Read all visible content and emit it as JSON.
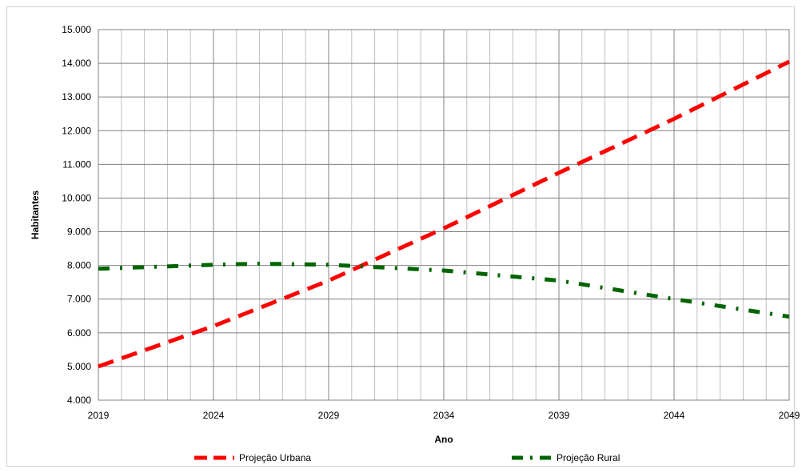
{
  "chart_data": {
    "type": "line",
    "title": "",
    "xlabel": "Ano",
    "ylabel": "Habitantes",
    "xlim": [
      2019,
      2049
    ],
    "ylim": [
      4000,
      15000
    ],
    "x_ticks": [
      2019,
      2024,
      2029,
      2034,
      2039,
      2044,
      2049
    ],
    "x_tick_labels": [
      "2019",
      "2024",
      "2029",
      "2034",
      "2039",
      "2044",
      "2049"
    ],
    "y_ticks": [
      4000,
      5000,
      6000,
      7000,
      8000,
      9000,
      10000,
      11000,
      12000,
      13000,
      14000,
      15000
    ],
    "y_tick_labels": [
      "4.000",
      "5.000",
      "6.000",
      "7.000",
      "8.000",
      "9.000",
      "10.000",
      "11.000",
      "12.000",
      "13.000",
      "14.000",
      "15.000"
    ],
    "grid": true,
    "legend_position": "bottom",
    "series": [
      {
        "name": "Projeção Urbana",
        "color": "#ff0000",
        "style": "dashed",
        "x": [
          2019,
          2024,
          2029,
          2034,
          2039,
          2044,
          2049
        ],
        "y": [
          5000,
          6200,
          7550,
          9100,
          10750,
          12350,
          14050
        ]
      },
      {
        "name": "Projeção Rural",
        "color": "#006400",
        "style": "dash-dot",
        "x": [
          2019,
          2024,
          2026,
          2029,
          2034,
          2039,
          2044,
          2049
        ],
        "y": [
          7900,
          8020,
          8050,
          8020,
          7850,
          7550,
          7000,
          6480
        ]
      }
    ]
  }
}
